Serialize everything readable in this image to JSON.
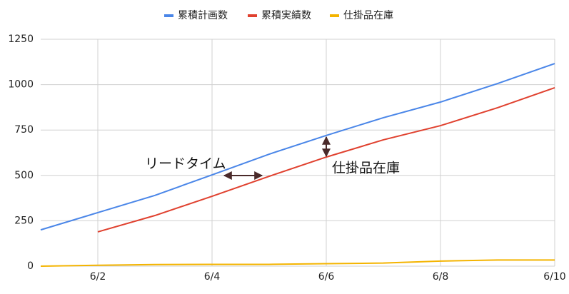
{
  "chart_data": {
    "type": "line",
    "categories": [
      null,
      "6/2",
      null,
      "6/4",
      null,
      "6/6",
      null,
      "6/8",
      null,
      "6/10"
    ],
    "series": [
      {
        "name": "累積計画数",
        "color": "#4a86e8",
        "values": [
          200,
          295,
          390,
          503,
          617,
          720,
          818,
          904,
          1006,
          1116
        ]
      },
      {
        "name": "累積実績数",
        "color": "#e0412f",
        "values": [
          null,
          189,
          279,
          385,
          495,
          601,
          696,
          774,
          873,
          983
        ]
      },
      {
        "name": "仕掛品在庫",
        "color": "#f4b400",
        "values": [
          0,
          5,
          9,
          10,
          10,
          14,
          17,
          28,
          34,
          34
        ]
      }
    ],
    "ylim": [
      0,
      1250
    ],
    "yticks": [
      0,
      250,
      500,
      750,
      1000,
      1250
    ],
    "grid": true,
    "annotations": [
      "リードタイム",
      "仕掛品在庫"
    ]
  }
}
